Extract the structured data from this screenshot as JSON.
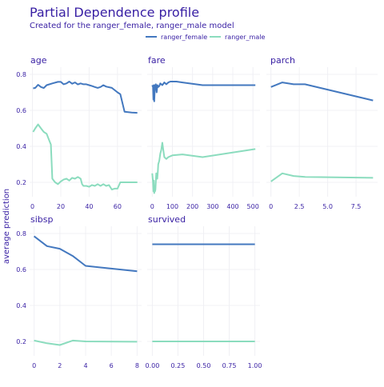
{
  "header": {
    "title": "Partial Dependence profile",
    "subtitle": "Created for the ranger_female, ranger_male model"
  },
  "legend": {
    "placement": "top-right",
    "entries": [
      {
        "name": "ranger_female",
        "color": "#4378bf"
      },
      {
        "name": "ranger_male",
        "color": "#8bdcbe"
      }
    ]
  },
  "ylabel": "average prediction",
  "colors": {
    "title": "#371ea3",
    "grid": "#f0f0f4",
    "tick": "#371ea3"
  },
  "chart_data": [
    {
      "type": "line",
      "panel": "age",
      "xlim": [
        -2,
        77
      ],
      "ylim": [
        0.12,
        0.84
      ],
      "xticks": [
        {
          "v": 0,
          "label": "0"
        },
        {
          "v": 20,
          "label": "20"
        },
        {
          "v": 40,
          "label": "40"
        },
        {
          "v": 60,
          "label": "60"
        }
      ],
      "yticks": [
        {
          "v": 0.2,
          "label": "0.2"
        },
        {
          "v": 0.4,
          "label": "0.4"
        },
        {
          "v": 0.6,
          "label": "0.6"
        },
        {
          "v": 0.8,
          "label": "0.8"
        }
      ],
      "show_xticks": true,
      "show_yticks": true,
      "series": [
        {
          "name": "ranger_female",
          "color": "#4378bf",
          "x": [
            0.5,
            2,
            4,
            6,
            8,
            10,
            14,
            18,
            20,
            22,
            24,
            26,
            28,
            30,
            32,
            34,
            36,
            38,
            40,
            42,
            44,
            46,
            48,
            50,
            52,
            56,
            60,
            62,
            65,
            70,
            74
          ],
          "y": [
            0.722,
            0.725,
            0.742,
            0.73,
            0.724,
            0.74,
            0.75,
            0.758,
            0.758,
            0.745,
            0.75,
            0.76,
            0.748,
            0.755,
            0.744,
            0.75,
            0.745,
            0.745,
            0.74,
            0.735,
            0.73,
            0.725,
            0.73,
            0.74,
            0.732,
            0.725,
            0.7,
            0.69,
            0.592,
            0.588,
            0.586
          ]
        },
        {
          "name": "ranger_male",
          "color": "#8bdcbe",
          "x": [
            0.5,
            2,
            4,
            6,
            8,
            10,
            12,
            13,
            14,
            16,
            18,
            20,
            22,
            24,
            26,
            28,
            30,
            32,
            34,
            35,
            36,
            38,
            40,
            42,
            44,
            46,
            48,
            50,
            52,
            54,
            56,
            58,
            60,
            62,
            65,
            70,
            74
          ],
          "y": [
            0.48,
            0.5,
            0.522,
            0.5,
            0.48,
            0.47,
            0.43,
            0.41,
            0.22,
            0.2,
            0.19,
            0.205,
            0.215,
            0.22,
            0.21,
            0.225,
            0.22,
            0.23,
            0.22,
            0.19,
            0.18,
            0.18,
            0.175,
            0.185,
            0.18,
            0.19,
            0.18,
            0.19,
            0.18,
            0.185,
            0.16,
            0.165,
            0.165,
            0.2,
            0.2,
            0.2,
            0.2
          ]
        }
      ]
    },
    {
      "type": "line",
      "panel": "fare",
      "xlim": [
        -25,
        535
      ],
      "ylim": [
        0.12,
        0.84
      ],
      "xticks": [
        {
          "v": 0,
          "label": "0"
        },
        {
          "v": 100,
          "label": "100"
        },
        {
          "v": 200,
          "label": "200"
        },
        {
          "v": 300,
          "label": "300"
        },
        {
          "v": 400,
          "label": "400"
        },
        {
          "v": 500,
          "label": "500"
        }
      ],
      "yticks": [
        {
          "v": 0.2,
          "label": "0.2"
        },
        {
          "v": 0.4,
          "label": "0.4"
        },
        {
          "v": 0.6,
          "label": "0.6"
        },
        {
          "v": 0.8,
          "label": "0.8"
        }
      ],
      "show_xticks": true,
      "show_yticks": false,
      "series": [
        {
          "name": "ranger_female",
          "color": "#4378bf",
          "x": [
            0,
            4,
            6,
            8,
            10,
            12,
            14,
            16,
            18,
            22,
            26,
            30,
            35,
            40,
            50,
            60,
            70,
            80,
            90,
            100,
            120,
            150,
            250,
            512
          ],
          "y": [
            0.74,
            0.73,
            0.66,
            0.74,
            0.65,
            0.7,
            0.74,
            0.72,
            0.745,
            0.7,
            0.74,
            0.73,
            0.735,
            0.75,
            0.74,
            0.755,
            0.745,
            0.755,
            0.76,
            0.76,
            0.76,
            0.755,
            0.74,
            0.74
          ]
        },
        {
          "name": "ranger_male",
          "color": "#8bdcbe",
          "x": [
            0,
            4,
            6,
            8,
            10,
            12,
            14,
            16,
            20,
            25,
            28,
            30,
            35,
            40,
            45,
            50,
            55,
            60,
            70,
            80,
            100,
            150,
            250,
            512
          ],
          "y": [
            0.25,
            0.2,
            0.15,
            0.21,
            0.14,
            0.16,
            0.15,
            0.16,
            0.25,
            0.22,
            0.26,
            0.3,
            0.32,
            0.36,
            0.38,
            0.42,
            0.38,
            0.34,
            0.33,
            0.34,
            0.35,
            0.355,
            0.34,
            0.385
          ]
        }
      ]
    },
    {
      "type": "line",
      "panel": "parch",
      "xlim": [
        -0.4,
        9.4
      ],
      "ylim": [
        0.12,
        0.84
      ],
      "xticks": [
        {
          "v": 0,
          "label": "0"
        },
        {
          "v": 2.5,
          "label": "2.5"
        },
        {
          "v": 5,
          "label": "5.0"
        },
        {
          "v": 7.5,
          "label": "7.5"
        }
      ],
      "yticks": [
        {
          "v": 0.2,
          "label": "0.2"
        },
        {
          "v": 0.4,
          "label": "0.4"
        },
        {
          "v": 0.6,
          "label": "0.6"
        },
        {
          "v": 0.8,
          "label": "0.8"
        }
      ],
      "show_xticks": true,
      "show_yticks": false,
      "series": [
        {
          "name": "ranger_female",
          "color": "#4378bf",
          "x": [
            0,
            1,
            2,
            3,
            9
          ],
          "y": [
            0.73,
            0.755,
            0.745,
            0.745,
            0.655
          ]
        },
        {
          "name": "ranger_male",
          "color": "#8bdcbe",
          "x": [
            0,
            1,
            2,
            3,
            9
          ],
          "y": [
            0.205,
            0.25,
            0.235,
            0.23,
            0.225
          ]
        }
      ]
    },
    {
      "type": "line",
      "panel": "sibsp",
      "xlim": [
        -0.35,
        8.35
      ],
      "ylim": [
        0.12,
        0.84
      ],
      "xticks": [
        {
          "v": 0,
          "label": "0"
        },
        {
          "v": 2,
          "label": "2"
        },
        {
          "v": 4,
          "label": "4"
        },
        {
          "v": 6,
          "label": "6"
        },
        {
          "v": 8,
          "label": "8"
        }
      ],
      "yticks": [
        {
          "v": 0.2,
          "label": "0.2"
        },
        {
          "v": 0.4,
          "label": "0.4"
        },
        {
          "v": 0.6,
          "label": "0.6"
        },
        {
          "v": 0.8,
          "label": "0.8"
        }
      ],
      "show_xticks": true,
      "show_yticks": true,
      "series": [
        {
          "name": "ranger_female",
          "color": "#4378bf",
          "x": [
            0,
            1,
            2,
            3,
            4,
            8
          ],
          "y": [
            0.785,
            0.73,
            0.715,
            0.675,
            0.62,
            0.59
          ]
        },
        {
          "name": "ranger_male",
          "color": "#8bdcbe",
          "x": [
            0,
            1,
            2,
            3,
            4,
            8
          ],
          "y": [
            0.205,
            0.19,
            0.18,
            0.205,
            0.2,
            0.198
          ]
        }
      ]
    },
    {
      "type": "line",
      "panel": "survived",
      "xlim": [
        -0.05,
        1.05
      ],
      "ylim": [
        0.12,
        0.84
      ],
      "xticks": [
        {
          "v": 0,
          "label": "0.00"
        },
        {
          "v": 0.25,
          "label": "0.25"
        },
        {
          "v": 0.5,
          "label": "0.50"
        },
        {
          "v": 0.75,
          "label": "0.75"
        },
        {
          "v": 1,
          "label": "1.00"
        }
      ],
      "yticks": [
        {
          "v": 0.2,
          "label": "0.2"
        },
        {
          "v": 0.4,
          "label": "0.4"
        },
        {
          "v": 0.6,
          "label": "0.6"
        },
        {
          "v": 0.8,
          "label": "0.8"
        }
      ],
      "show_xticks": true,
      "show_yticks": false,
      "series": [
        {
          "name": "ranger_female",
          "color": "#4378bf",
          "x": [
            0,
            1
          ],
          "y": [
            0.74,
            0.74
          ]
        },
        {
          "name": "ranger_male",
          "color": "#8bdcbe",
          "x": [
            0,
            1
          ],
          "y": [
            0.2,
            0.2
          ]
        }
      ]
    }
  ]
}
